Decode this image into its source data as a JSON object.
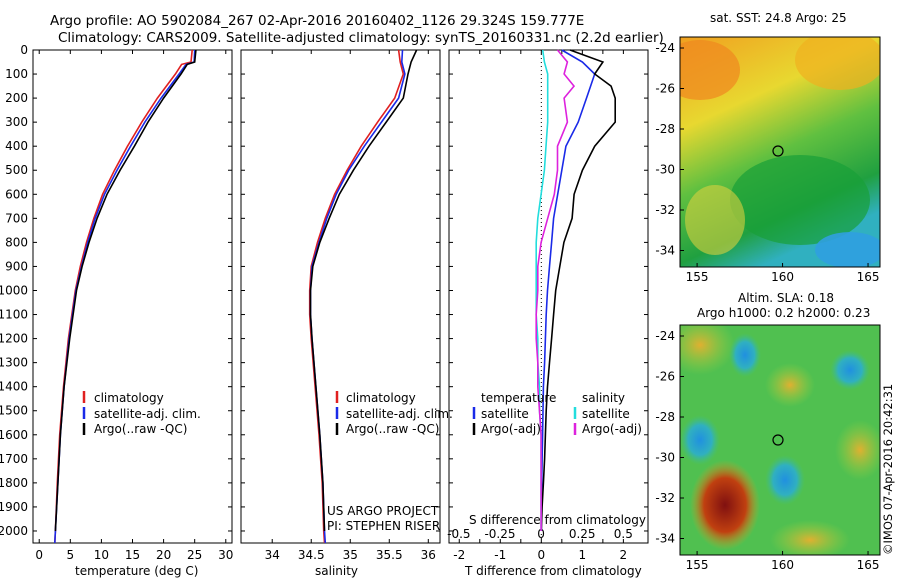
{
  "titles": {
    "line1": "Argo profile: AO 5902084_267 02-Apr-2016 20160402_1126 29.324S 159.777E",
    "line2": "Climatology: CARS2009. Satellite-adjusted climatology: synTS_20160331.nc (2.2d earlier)"
  },
  "colors": {
    "climatology": "#e02020",
    "satellite": "#1a2ae8",
    "argo": "#000000",
    "sal_satellite": "#22dddd",
    "sal_argo": "#dd22dd"
  },
  "legends": {
    "profile": [
      "climatology",
      "satellite-adj. clim.",
      "Argo(..raw -QC)"
    ],
    "diff_headers": [
      "temperature",
      "salinity"
    ],
    "diff_temp": [
      "satellite",
      "Argo(-adj)"
    ],
    "diff_sal": [
      "satellite",
      "Argo(-adj)"
    ]
  },
  "credits": [
    "US ARGO PROJECT",
    "PI: STEPHEN RISER"
  ],
  "map_panels": {
    "sst_title": "sat. SST: 24.8 Argo: 25",
    "sla_title1": "Altim. SLA: 0.18",
    "sla_title2": "Argo h1000: 0.2 h2000: 0.23",
    "y_ticks": [
      "-24",
      "-26",
      "-28",
      "-30",
      "-32",
      "-34"
    ],
    "x_ticks": [
      "155",
      "160",
      "165"
    ],
    "float_marker": "open circle",
    "credit_vertical": "©IMOS 07-Apr-2016 20:42:31"
  },
  "chart_data": [
    {
      "type": "line",
      "xlabel": "temperature (deg C)",
      "xlim": [
        -1,
        31
      ],
      "ylim": [
        2050,
        0
      ],
      "x_ticks": [
        "0",
        "5",
        "10",
        "15",
        "20",
        "25",
        "30"
      ],
      "y_ticks": [
        "0",
        "100",
        "200",
        "300",
        "400",
        "500",
        "600",
        "700",
        "800",
        "900",
        "1000",
        "1100",
        "1200",
        "1300",
        "1400",
        "1500",
        "1600",
        "1700",
        "1800",
        "1900",
        "2000"
      ],
      "depth": [
        0,
        50,
        60,
        100,
        200,
        300,
        400,
        500,
        600,
        700,
        800,
        900,
        1000,
        1200,
        1400,
        1600,
        1800,
        2000,
        2050
      ],
      "series": [
        {
          "name": "climatology",
          "color_key": "climatology",
          "values": [
            24.6,
            24.4,
            22.9,
            21.9,
            19.0,
            16.5,
            14.2,
            12.1,
            10.2,
            8.8,
            7.6,
            6.6,
            5.8,
            4.7,
            3.9,
            3.3,
            2.9,
            2.6,
            2.5
          ]
        },
        {
          "name": "satellite-adj. clim.",
          "color_key": "satellite",
          "values": [
            25.0,
            24.9,
            23.6,
            22.5,
            19.6,
            17.0,
            14.7,
            12.5,
            10.5,
            9.0,
            7.8,
            6.8,
            5.9,
            4.8,
            4.0,
            3.4,
            3.0,
            2.6,
            2.5
          ]
        },
        {
          "name": "Argo(..raw -QC)",
          "color_key": "argo",
          "values": [
            25.2,
            25.0,
            23.8,
            22.8,
            20.0,
            17.5,
            15.3,
            13.0,
            10.9,
            9.3,
            8.0,
            6.9,
            6.0,
            4.9,
            4.0,
            3.4,
            3.0,
            2.6,
            null
          ]
        }
      ]
    },
    {
      "type": "line",
      "xlabel": "salinity",
      "xlim": [
        33.6,
        36.15
      ],
      "ylim": [
        2050,
        0
      ],
      "x_ticks": [
        "34",
        "34.5",
        "35",
        "35.5",
        "36"
      ],
      "depth": [
        0,
        50,
        100,
        200,
        300,
        400,
        500,
        600,
        700,
        800,
        900,
        1000,
        1100,
        1200,
        1400,
        1600,
        1800,
        2000,
        2050
      ],
      "series": [
        {
          "name": "climatology",
          "color_key": "climatology",
          "values": [
            35.62,
            35.64,
            35.68,
            35.57,
            35.35,
            35.14,
            34.96,
            34.8,
            34.68,
            34.58,
            34.5,
            34.48,
            34.48,
            34.5,
            34.55,
            34.6,
            34.64,
            34.66,
            34.67
          ]
        },
        {
          "name": "satellite-adj. clim.",
          "color_key": "satellite",
          "values": [
            35.67,
            35.66,
            35.7,
            35.62,
            35.4,
            35.18,
            34.98,
            34.82,
            34.7,
            34.6,
            34.51,
            34.49,
            34.49,
            34.51,
            34.56,
            34.61,
            34.65,
            34.67,
            34.68
          ]
        },
        {
          "name": "Argo(..raw -QC)",
          "color_key": "argo",
          "values": [
            35.85,
            35.78,
            35.74,
            35.68,
            35.46,
            35.24,
            35.04,
            34.86,
            34.73,
            34.61,
            34.52,
            34.49,
            34.49,
            34.51,
            34.56,
            34.61,
            34.65,
            34.67,
            null
          ]
        }
      ]
    },
    {
      "type": "line",
      "xlabel": "T difference from climatology",
      "x2label": "S difference from climatology",
      "xlim": [
        -2.25,
        2.6
      ],
      "x2lim": [
        -0.56,
        0.65
      ],
      "ylim": [
        2050,
        0
      ],
      "x_ticks": [
        "-2",
        "-1.5",
        "-1",
        "-0.5",
        "0",
        "0.5",
        "1",
        "1.5",
        "2"
      ],
      "x_ticks_shown": [
        "-2",
        "-1",
        "0",
        "1",
        "2"
      ],
      "x2_ticks": [
        "-0.5",
        "-0.25",
        "0",
        "0.25",
        "0.5"
      ],
      "depth": [
        0,
        50,
        100,
        150,
        200,
        300,
        400,
        500,
        600,
        700,
        800,
        900,
        1000,
        1100,
        1200,
        1300,
        1400,
        1500,
        1600,
        1700,
        1800,
        1900,
        2000
      ],
      "series": [
        {
          "name": "temperature satellite",
          "axis": "T",
          "color_key": "satellite",
          "values": [
            0.5,
            1.0,
            1.3,
            1.2,
            1.1,
            0.9,
            0.6,
            0.5,
            0.4,
            0.3,
            0.25,
            0.2,
            0.15,
            0.12,
            0.1,
            0.08,
            0.05,
            0.04,
            0.03,
            0.02,
            0.01,
            0.0,
            0.0
          ]
        },
        {
          "name": "temperature Argo(-adj)",
          "axis": "T",
          "color_key": "argo",
          "values": [
            0.7,
            1.5,
            1.3,
            1.7,
            1.8,
            1.8,
            1.3,
            1.0,
            0.8,
            0.75,
            0.55,
            0.45,
            0.35,
            0.3,
            0.25,
            0.2,
            0.15,
            0.12,
            0.1,
            0.08,
            0.05,
            0.02,
            0.0
          ]
        },
        {
          "name": "salinity satellite",
          "axis": "S",
          "color_key": "sal_satellite",
          "values": [
            0.01,
            0.02,
            0.04,
            0.04,
            0.04,
            0.04,
            0.03,
            0.02,
            0.0,
            -0.02,
            -0.03,
            -0.03,
            -0.03,
            -0.03,
            -0.02,
            -0.02,
            -0.01,
            -0.01,
            0.0,
            0.0,
            0.0,
            0.0,
            0.0
          ]
        },
        {
          "name": "salinity Argo(-adj)",
          "axis": "S",
          "color_key": "sal_argo",
          "values": [
            0.1,
            0.16,
            0.14,
            0.2,
            0.14,
            0.16,
            0.1,
            0.1,
            0.08,
            0.04,
            0.0,
            -0.02,
            -0.02,
            -0.03,
            -0.03,
            -0.02,
            -0.02,
            -0.01,
            0.0,
            0.0,
            0.0,
            0.0,
            0.0
          ]
        }
      ]
    }
  ]
}
